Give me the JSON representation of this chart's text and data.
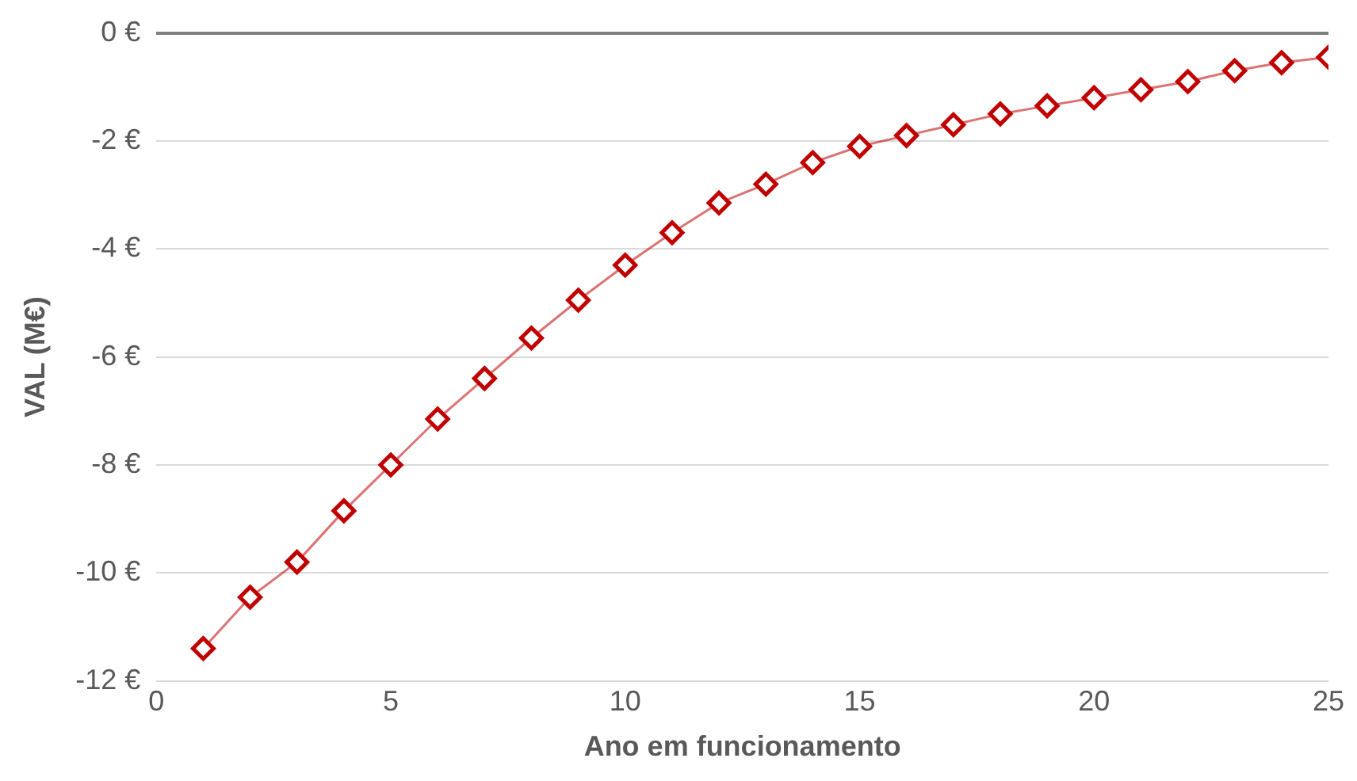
{
  "chart_data": {
    "type": "line",
    "xlabel": "Ano em funcionamento",
    "ylabel": "VAL (M€)",
    "x": [
      1,
      2,
      3,
      4,
      5,
      6,
      7,
      8,
      9,
      10,
      11,
      12,
      13,
      14,
      15,
      16,
      17,
      18,
      19,
      20,
      21,
      22,
      23,
      24,
      25
    ],
    "series": [
      {
        "color": "#c00000",
        "values": [
          -11.4,
          -10.45,
          -9.8,
          -8.85,
          -8.0,
          -7.15,
          -6.4,
          -5.65,
          -4.95,
          -4.3,
          -3.7,
          -3.15,
          -2.8,
          -2.4,
          -2.1,
          -1.9,
          -1.7,
          -1.5,
          -1.35,
          -1.2,
          -1.05,
          -0.9,
          -0.7,
          -0.55,
          -0.45
        ]
      }
    ],
    "xlim": [
      0,
      25
    ],
    "xticks": [
      0,
      5,
      10,
      15,
      20,
      25
    ],
    "ylim": [
      -12,
      0
    ],
    "yticks": [
      {
        "value": -12,
        "label": "-12 €"
      },
      {
        "value": -10,
        "label": "-10 €"
      },
      {
        "value": -8,
        "label": "-8 €"
      },
      {
        "value": -6,
        "label": "-6 €"
      },
      {
        "value": -4,
        "label": "-4 €"
      },
      {
        "value": -2,
        "label": "-2 €"
      },
      {
        "value": 0,
        "label": "0 €"
      }
    ],
    "grid": "y",
    "legend": false,
    "marker": "diamond",
    "line_style": "solid"
  }
}
